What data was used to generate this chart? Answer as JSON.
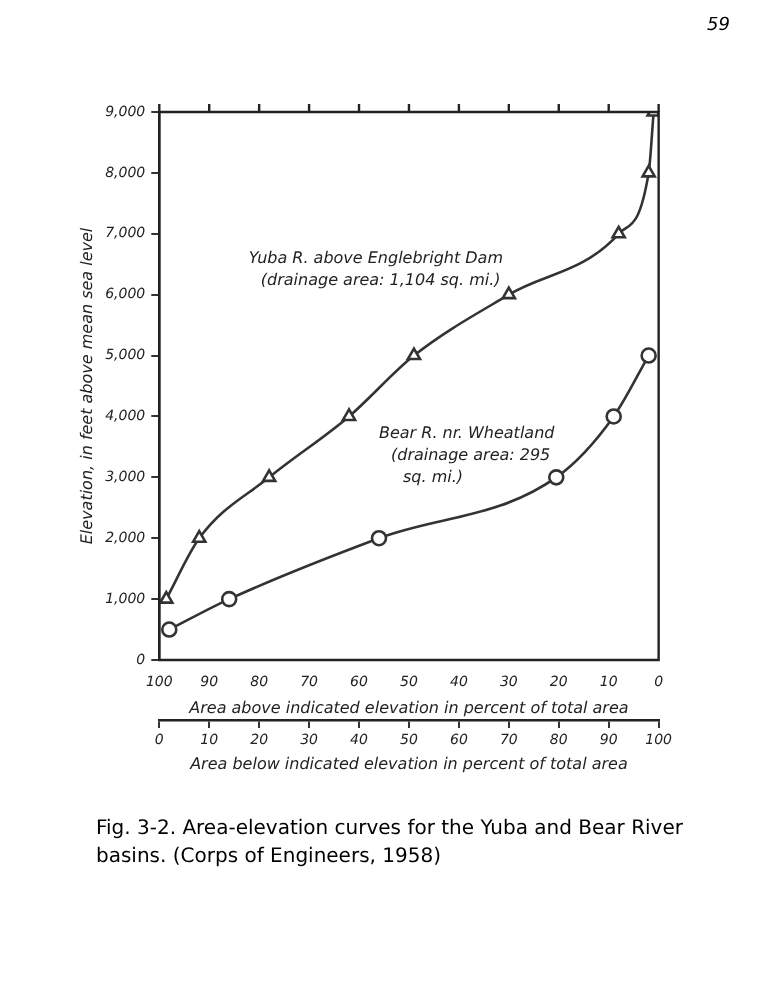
{
  "chart_data": {
    "type": "line",
    "ylabel": "Elevation, in feet above mean sea level",
    "xlabel": "Area below indicated elevation in percent of total area",
    "x2label": "Area above indicated elevation in percent of total area",
    "xlim": [
      0,
      100
    ],
    "xticks": [
      0,
      10,
      20,
      30,
      40,
      50,
      60,
      70,
      80,
      90,
      100
    ],
    "x2lim": [
      100,
      0
    ],
    "x2ticks": [
      100,
      90,
      80,
      70,
      60,
      50,
      40,
      30,
      20,
      10,
      0
    ],
    "ylim": [
      0,
      9000
    ],
    "yticks": [
      0,
      {
        "value": 1000,
        "label": "1,000"
      },
      {
        "value": 2000,
        "label": "2,000"
      },
      {
        "value": 3000,
        "label": "3,000"
      },
      {
        "value": 4000,
        "label": "4,000"
      },
      {
        "value": 5000,
        "label": "5,000"
      },
      {
        "value": 6000,
        "label": "6,000"
      },
      {
        "value": 7000,
        "label": "7,000"
      },
      {
        "value": 8000,
        "label": "8,000"
      },
      {
        "value": 9000,
        "label": "9,000"
      }
    ],
    "grid": false,
    "legend": false,
    "line_style": "solid",
    "series": [
      {
        "name": "Yuba R. above Englebright Dam (drainage area: 1,104 sq. mi.)",
        "color": "#333333",
        "marker": "triangle",
        "x": [
          1.4,
          8,
          22,
          38,
          51,
          70,
          92,
          98,
          99
        ],
        "values": [
          1000,
          2000,
          3000,
          4000,
          5000,
          6000,
          7000,
          8000,
          9000
        ]
      },
      {
        "name": "Bear R. nr. Wheatland (drainage area: 295 sq. mi.)",
        "color": "#333333",
        "marker": "circle",
        "x": [
          2,
          14,
          44,
          79.5,
          91,
          98
        ],
        "values": [
          500,
          1000,
          2000,
          3000,
          4000,
          5000
        ]
      }
    ],
    "annotations": [
      "59",
      "Fig. 3-2. Area-elevation curves for the Yuba and Bear River basins. (Corps of Engineers, 1958)"
    ]
  }
}
